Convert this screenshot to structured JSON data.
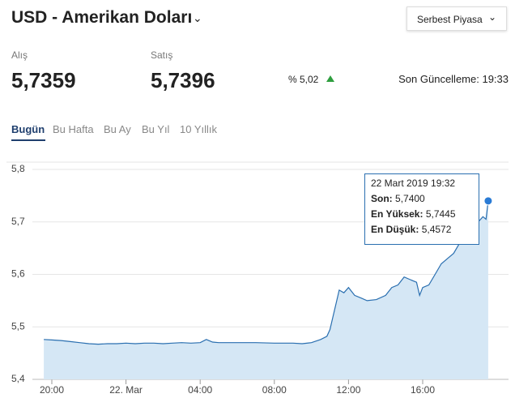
{
  "header": {
    "title": "USD - Amerikan Doları",
    "market": "Serbest Piyasa"
  },
  "quotes": {
    "buy_label": "Alış",
    "buy": "5,7359",
    "sell_label": "Satış",
    "sell": "5,7396",
    "change": "% 5,02",
    "update": "Son Güncelleme: 19:33"
  },
  "tabs": [
    "Bugün",
    "Bu Hafta",
    "Bu Ay",
    "Bu Yıl",
    "10 Yıllık"
  ],
  "tooltip": {
    "date": "22 Mart 2019 19:32",
    "rows": [
      {
        "label": "Son:",
        "value": "5,7400"
      },
      {
        "label": "En Yüksek:",
        "value": "5,7445"
      },
      {
        "label": "En Düşük:",
        "value": "5,4572"
      }
    ]
  },
  "chart_data": {
    "type": "line",
    "color": "#2a6fb0",
    "fill": "#d5e7f5",
    "grid": true,
    "x": [
      "19:34",
      "20:00",
      "20:30",
      "21:00",
      "21:30",
      "22:00",
      "22:30",
      "23:00",
      "23:30",
      "00:00",
      "00:30",
      "01:00",
      "01:30",
      "02:00",
      "02:30",
      "03:00",
      "03:30",
      "04:00",
      "04:20",
      "04:40",
      "05:00",
      "06:00",
      "07:00",
      "08:00",
      "09:00",
      "09:30",
      "10:00",
      "10:30",
      "10:50",
      "11:00",
      "11:10",
      "11:20",
      "11:30",
      "11:45",
      "12:00",
      "12:20",
      "12:40",
      "13:00",
      "13:30",
      "14:00",
      "14:20",
      "14:40",
      "15:00",
      "15:20",
      "15:40",
      "15:50",
      "16:00",
      "16:20",
      "16:40",
      "17:00",
      "17:20",
      "17:40",
      "18:00",
      "18:20",
      "18:40",
      "19:00",
      "19:15",
      "19:25",
      "19:32"
    ],
    "values": [
      5.476,
      5.475,
      5.474,
      5.472,
      5.47,
      5.468,
      5.467,
      5.468,
      5.468,
      5.469,
      5.468,
      5.469,
      5.469,
      5.468,
      5.469,
      5.47,
      5.469,
      5.47,
      5.476,
      5.471,
      5.47,
      5.47,
      5.47,
      5.469,
      5.469,
      5.468,
      5.47,
      5.476,
      5.482,
      5.495,
      5.52,
      5.545,
      5.57,
      5.565,
      5.575,
      5.56,
      5.555,
      5.55,
      5.552,
      5.56,
      5.575,
      5.58,
      5.595,
      5.59,
      5.585,
      5.56,
      5.575,
      5.58,
      5.6,
      5.62,
      5.63,
      5.64,
      5.66,
      5.69,
      5.705,
      5.7,
      5.71,
      5.705,
      5.74
    ],
    "ylim": [
      5.4,
      5.8
    ],
    "yticks": [
      {
        "value": 5.4,
        "label": "5,4"
      },
      {
        "value": 5.5,
        "label": "5,5"
      },
      {
        "value": 5.6,
        "label": "5,6"
      },
      {
        "value": 5.7,
        "label": "5,7"
      },
      {
        "value": 5.8,
        "label": "5,8"
      }
    ],
    "xticks": [
      "20:00",
      {
        "value": "00:00",
        "label": "22. Mar"
      },
      "04:00",
      "08:00",
      "12:00",
      "16:00"
    ]
  }
}
